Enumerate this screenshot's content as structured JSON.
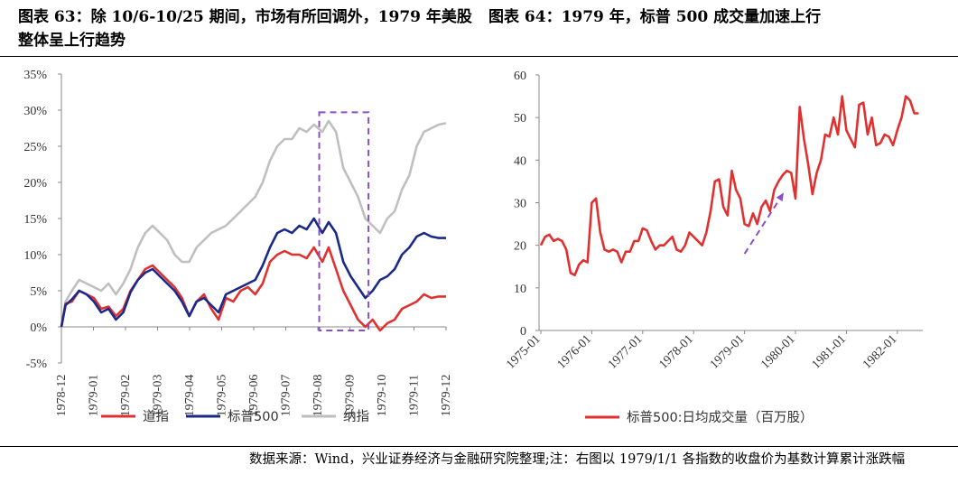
{
  "titles": {
    "left": "图表 63：除 10/6-10/25 期间，市场有所回调外，1979 年美股整体呈上行趋势",
    "right": "图表 64：1979 年，标普 500 成交量加速上行"
  },
  "footnote": "数据来源：Wind，兴业证券经济与金融研究院整理;注：右图以 1979/1/1 各指数的收盘价为基数计算累计涨跌幅",
  "colors": {
    "dow": "#e03030",
    "sp500": "#1a2a8a",
    "nasdaq": "#bfbfbf",
    "volume": "#e03030",
    "highlight": "#8a4fc8",
    "arrow": "#8a4fc8"
  },
  "chart_data": [
    {
      "type": "line",
      "y_unit": "%",
      "ylim": [
        -5,
        35
      ],
      "y_ticks": [
        "35%",
        "30%",
        "25%",
        "20%",
        "15%",
        "10%",
        "5%",
        "0%",
        "-5%"
      ],
      "x_ticks": [
        "1978-12",
        "1979-01",
        "1979-02",
        "1979-03",
        "1979-04",
        "1979-05",
        "1979-06",
        "1979-07",
        "1979-08",
        "1979-09",
        "1979-10",
        "1979-11",
        "1979-12"
      ],
      "highlight_box": {
        "x_range": [
          "1979-09-01",
          "1979-10-18"
        ],
        "y_range": [
          -0.5,
          29.7
        ]
      },
      "x": [
        "1978-12-29",
        "1979-01-02",
        "1979-01-08",
        "1979-01-15",
        "1979-01-22",
        "1979-01-29",
        "1979-02-05",
        "1979-02-12",
        "1979-02-19",
        "1979-02-26",
        "1979-03-05",
        "1979-03-12",
        "1979-03-19",
        "1979-03-26",
        "1979-04-02",
        "1979-04-09",
        "1979-04-16",
        "1979-04-23",
        "1979-04-30",
        "1979-05-07",
        "1979-05-14",
        "1979-05-21",
        "1979-05-28",
        "1979-06-04",
        "1979-06-11",
        "1979-06-18",
        "1979-06-25",
        "1979-07-02",
        "1979-07-09",
        "1979-07-16",
        "1979-07-23",
        "1979-07-30",
        "1979-08-06",
        "1979-08-13",
        "1979-08-20",
        "1979-08-27",
        "1979-09-04",
        "1979-09-10",
        "1979-09-17",
        "1979-09-24",
        "1979-10-01",
        "1979-10-08",
        "1979-10-15",
        "1979-10-22",
        "1979-10-29",
        "1979-11-05",
        "1979-11-12",
        "1979-11-19",
        "1979-11-26",
        "1979-12-03",
        "1979-12-10",
        "1979-12-17",
        "1979-12-24",
        "1979-12-31"
      ],
      "series": [
        {
          "name": "道指",
          "values": [
            0,
            3.2,
            3.5,
            5,
            4.5,
            4,
            2.5,
            2.8,
            1.5,
            2.5,
            5,
            6.5,
            8,
            8.5,
            7.5,
            6.5,
            5.5,
            4,
            1.5,
            3.5,
            4.5,
            2.5,
            1,
            4,
            3.5,
            5,
            5.5,
            4.5,
            6,
            9,
            10,
            10.5,
            10,
            10,
            9.5,
            11,
            9,
            11,
            8,
            5,
            3,
            1,
            0,
            1,
            -0.5,
            0.5,
            1,
            2.5,
            3,
            3.5,
            4.5,
            4,
            4.2,
            4.2
          ]
        },
        {
          "name": "标普500",
          "values": [
            0,
            3,
            3.8,
            5,
            4.5,
            3.5,
            2,
            2.5,
            1,
            2,
            4.8,
            6.5,
            7.5,
            8,
            7,
            6,
            5,
            3.5,
            1.5,
            3.5,
            4,
            3,
            2,
            4.5,
            5,
            5.5,
            6,
            6.5,
            8.5,
            11,
            13,
            13.5,
            13,
            14,
            13.5,
            15,
            13,
            14.5,
            13,
            9,
            7,
            5.5,
            4,
            5,
            6.5,
            7,
            8,
            10,
            11,
            12.5,
            13,
            12.5,
            12.3,
            12.3
          ]
        },
        {
          "name": "纳指",
          "values": [
            0,
            3.5,
            5,
            6.5,
            6,
            5.5,
            5,
            6,
            4.5,
            6,
            8,
            11,
            13,
            14,
            13,
            12,
            10,
            9,
            9,
            11,
            12,
            13,
            13.5,
            14,
            15,
            16,
            17,
            18,
            20,
            23,
            25,
            26,
            26,
            27.5,
            27,
            28,
            27,
            28.5,
            27,
            22,
            20,
            18,
            15,
            14,
            13,
            15,
            16,
            19,
            21,
            25,
            27,
            27.5,
            28,
            28.2
          ]
        }
      ]
    },
    {
      "type": "line",
      "ylim": [
        0,
        60
      ],
      "y_ticks": [
        "60",
        "50",
        "40",
        "30",
        "20",
        "10",
        "0"
      ],
      "x_ticks": [
        "1975-01",
        "1976-01",
        "1977-01",
        "1978-01",
        "1979-01",
        "1980-01",
        "1981-01",
        "1982-01"
      ],
      "arrow": {
        "from": [
          "1979-01",
          18
        ],
        "to": [
          "1979-10",
          32
        ]
      },
      "series": [
        {
          "name": "标普500:日均成交量（百万股）",
          "x": [
            "1975-01",
            "1975-02",
            "1975-03",
            "1975-04",
            "1975-05",
            "1975-06",
            "1975-07",
            "1975-08",
            "1975-09",
            "1975-10",
            "1975-11",
            "1975-12",
            "1976-01",
            "1976-02",
            "1976-03",
            "1976-04",
            "1976-05",
            "1976-06",
            "1976-07",
            "1976-08",
            "1976-09",
            "1976-10",
            "1976-11",
            "1976-12",
            "1977-01",
            "1977-02",
            "1977-03",
            "1977-04",
            "1977-05",
            "1977-06",
            "1977-07",
            "1977-08",
            "1977-09",
            "1977-10",
            "1977-11",
            "1977-12",
            "1978-01",
            "1978-02",
            "1978-03",
            "1978-04",
            "1978-05",
            "1978-06",
            "1978-07",
            "1978-08",
            "1978-09",
            "1978-10",
            "1978-11",
            "1978-12",
            "1979-01",
            "1979-02",
            "1979-03",
            "1979-04",
            "1979-05",
            "1979-06",
            "1979-07",
            "1979-08",
            "1979-09",
            "1979-10",
            "1979-11",
            "1979-12",
            "1980-01",
            "1980-02",
            "1980-03",
            "1980-04",
            "1980-05",
            "1980-06",
            "1980-07",
            "1980-08",
            "1980-09",
            "1980-10",
            "1980-11",
            "1980-12",
            "1981-01",
            "1981-02",
            "1981-03",
            "1981-04",
            "1981-05",
            "1981-06",
            "1981-07",
            "1981-08",
            "1981-09",
            "1981-10",
            "1981-11",
            "1981-12",
            "1982-01",
            "1982-02",
            "1982-03",
            "1982-04",
            "1982-05",
            "1982-06"
          ],
          "values": [
            20,
            22,
            22.5,
            21,
            21.5,
            21,
            19,
            13.5,
            13,
            15.5,
            16.5,
            16,
            30,
            31,
            23,
            19,
            18.5,
            19,
            18.5,
            16,
            18.5,
            18.5,
            21,
            21,
            24,
            23.5,
            21,
            19,
            20,
            20,
            21,
            22,
            19,
            18.5,
            20,
            23,
            22,
            21,
            20,
            23,
            28,
            35,
            35.5,
            29,
            27,
            37.5,
            33,
            31,
            25,
            24.5,
            27.5,
            25,
            29,
            30.5,
            28,
            33,
            35,
            36.5,
            37.5,
            37,
            31,
            52.5,
            45,
            39,
            32,
            37,
            40,
            46,
            45.5,
            50,
            46,
            55,
            47,
            45,
            43,
            53,
            53.5,
            46,
            50,
            43.5,
            44,
            46,
            45.5,
            43.5,
            47,
            50,
            55,
            54,
            51,
            51
          ]
        }
      ]
    }
  ],
  "legends": {
    "left": [
      "道指",
      "标普500",
      "纳指"
    ],
    "right": "标普500:日均成交量（百万股）"
  }
}
